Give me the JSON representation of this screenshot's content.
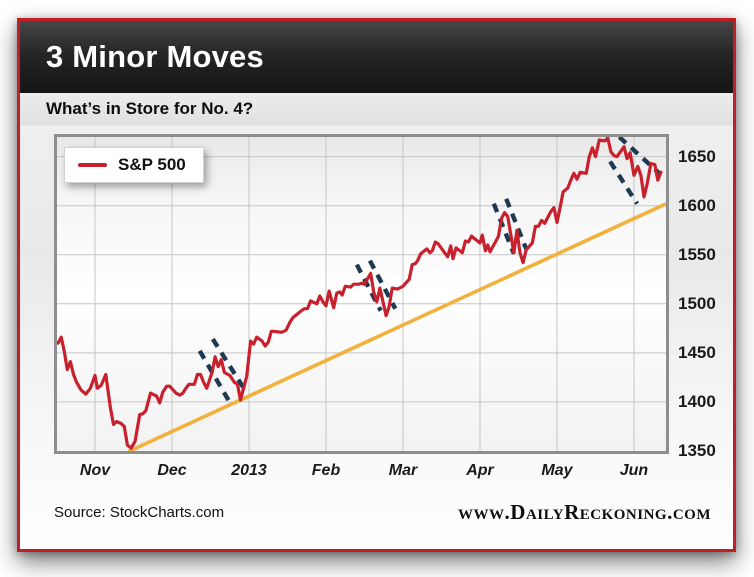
{
  "header": {
    "title": "3 Minor Moves"
  },
  "subtitle": "What’s in Store for No. 4?",
  "legend": {
    "label": "S&P 500"
  },
  "footer": {
    "source": "Source: StockCharts.com",
    "site": "www.DailyReckoning.com"
  },
  "colors": {
    "card_border": "#bf2026",
    "price_line": "#c9202e",
    "trend_line": "#f2b03c",
    "channel_dash": "#1e3a52",
    "gridline": "#c6c6c6",
    "plot_border": "#8e8e8e"
  },
  "chart_data": {
    "type": "line",
    "title": "3 Minor Moves",
    "subtitle": "What's in Store for No. 4?",
    "x_tick_labels": [
      "Nov",
      "Dec",
      "2013",
      "Feb",
      "Mar",
      "Apr",
      "May",
      "Jun"
    ],
    "y_ticks": [
      1350,
      1400,
      1450,
      1500,
      1550,
      1600,
      1650
    ],
    "xlim": [
      -0.494,
      7.416
    ],
    "ylim": [
      1350,
      1670
    ],
    "grid": true,
    "legend_position": "top-left",
    "series": [
      {
        "name": "S&P 500",
        "color": "#c9202e",
        "points": [
          [
            -0.48,
            1460
          ],
          [
            -0.44,
            1466
          ],
          [
            -0.4,
            1452
          ],
          [
            -0.36,
            1433
          ],
          [
            -0.32,
            1441
          ],
          [
            -0.28,
            1428
          ],
          [
            -0.24,
            1420
          ],
          [
            -0.18,
            1412
          ],
          [
            -0.12,
            1408
          ],
          [
            -0.06,
            1414
          ],
          [
            0.0,
            1427
          ],
          [
            0.03,
            1414
          ],
          [
            0.08,
            1417
          ],
          [
            0.14,
            1428
          ],
          [
            0.2,
            1394
          ],
          [
            0.24,
            1377
          ],
          [
            0.28,
            1380
          ],
          [
            0.34,
            1378
          ],
          [
            0.38,
            1375
          ],
          [
            0.42,
            1356
          ],
          [
            0.47,
            1353
          ],
          [
            0.52,
            1360
          ],
          [
            0.58,
            1387
          ],
          [
            0.62,
            1388
          ],
          [
            0.66,
            1391
          ],
          [
            0.72,
            1409
          ],
          [
            0.8,
            1406
          ],
          [
            0.84,
            1399
          ],
          [
            0.88,
            1410
          ],
          [
            0.93,
            1416
          ],
          [
            0.97,
            1416
          ],
          [
            1.05,
            1409
          ],
          [
            1.1,
            1407
          ],
          [
            1.14,
            1409
          ],
          [
            1.18,
            1414
          ],
          [
            1.22,
            1418
          ],
          [
            1.29,
            1418
          ],
          [
            1.33,
            1428
          ],
          [
            1.37,
            1428
          ],
          [
            1.41,
            1420
          ],
          [
            1.45,
            1414
          ],
          [
            1.52,
            1430
          ],
          [
            1.56,
            1446
          ],
          [
            1.6,
            1436
          ],
          [
            1.64,
            1443
          ],
          [
            1.68,
            1430
          ],
          [
            1.75,
            1427
          ],
          [
            1.81,
            1420
          ],
          [
            1.85,
            1418
          ],
          [
            1.89,
            1402
          ],
          [
            1.97,
            1426
          ],
          [
            2.02,
            1462
          ],
          [
            2.06,
            1459
          ],
          [
            2.1,
            1466
          ],
          [
            2.17,
            1462
          ],
          [
            2.21,
            1457
          ],
          [
            2.25,
            1461
          ],
          [
            2.29,
            1472
          ],
          [
            2.32,
            1472
          ],
          [
            2.42,
            1471
          ],
          [
            2.48,
            1473
          ],
          [
            2.53,
            1481
          ],
          [
            2.57,
            1486
          ],
          [
            2.68,
            1493
          ],
          [
            2.72,
            1495
          ],
          [
            2.76,
            1495
          ],
          [
            2.8,
            1503
          ],
          [
            2.88,
            1500
          ],
          [
            2.92,
            1508
          ],
          [
            2.96,
            1502
          ],
          [
            3.0,
            1498
          ],
          [
            3.04,
            1513
          ],
          [
            3.1,
            1496
          ],
          [
            3.14,
            1511
          ],
          [
            3.18,
            1512
          ],
          [
            3.21,
            1509
          ],
          [
            3.25,
            1518
          ],
          [
            3.32,
            1517
          ],
          [
            3.36,
            1520
          ],
          [
            3.43,
            1520
          ],
          [
            3.46,
            1521
          ],
          [
            3.5,
            1520
          ],
          [
            3.58,
            1531
          ],
          [
            3.62,
            1512
          ],
          [
            3.66,
            1502
          ],
          [
            3.7,
            1516
          ],
          [
            3.78,
            1488
          ],
          [
            3.82,
            1497
          ],
          [
            3.86,
            1516
          ],
          [
            3.93,
            1515
          ],
          [
            4.0,
            1518
          ],
          [
            4.08,
            1525
          ],
          [
            4.12,
            1540
          ],
          [
            4.16,
            1541
          ],
          [
            4.19,
            1544
          ],
          [
            4.23,
            1551
          ],
          [
            4.31,
            1556
          ],
          [
            4.35,
            1552
          ],
          [
            4.38,
            1554
          ],
          [
            4.42,
            1563
          ],
          [
            4.46,
            1561
          ],
          [
            4.54,
            1552
          ],
          [
            4.58,
            1548
          ],
          [
            4.62,
            1559
          ],
          [
            4.65,
            1546
          ],
          [
            4.69,
            1557
          ],
          [
            4.77,
            1552
          ],
          [
            4.81,
            1564
          ],
          [
            4.85,
            1563
          ],
          [
            4.89,
            1569
          ],
          [
            5.0,
            1562
          ],
          [
            5.03,
            1570
          ],
          [
            5.07,
            1554
          ],
          [
            5.1,
            1560
          ],
          [
            5.13,
            1553
          ],
          [
            5.2,
            1563
          ],
          [
            5.24,
            1569
          ],
          [
            5.28,
            1587
          ],
          [
            5.32,
            1593
          ],
          [
            5.36,
            1589
          ],
          [
            5.44,
            1552
          ],
          [
            5.48,
            1575
          ],
          [
            5.52,
            1552
          ],
          [
            5.56,
            1542
          ],
          [
            5.6,
            1555
          ],
          [
            5.68,
            1562
          ],
          [
            5.72,
            1579
          ],
          [
            5.76,
            1579
          ],
          [
            5.8,
            1585
          ],
          [
            5.84,
            1582
          ],
          [
            5.92,
            1594
          ],
          [
            5.96,
            1598
          ],
          [
            6.0,
            1583
          ],
          [
            6.04,
            1598
          ],
          [
            6.08,
            1614
          ],
          [
            6.14,
            1618
          ],
          [
            6.18,
            1626
          ],
          [
            6.22,
            1633
          ],
          [
            6.26,
            1627
          ],
          [
            6.3,
            1634
          ],
          [
            6.38,
            1633
          ],
          [
            6.42,
            1650
          ],
          [
            6.46,
            1659
          ],
          [
            6.5,
            1650
          ],
          [
            6.55,
            1667
          ],
          [
            6.62,
            1666
          ],
          [
            6.66,
            1669
          ],
          [
            6.7,
            1655
          ],
          [
            6.74,
            1651
          ],
          [
            6.78,
            1650
          ],
          [
            6.87,
            1660
          ],
          [
            6.91,
            1648
          ],
          [
            6.95,
            1654
          ],
          [
            7.0,
            1631
          ],
          [
            7.05,
            1640
          ],
          [
            7.09,
            1631
          ],
          [
            7.13,
            1609
          ],
          [
            7.17,
            1622
          ],
          [
            7.22,
            1643
          ],
          [
            7.27,
            1642
          ],
          [
            7.31,
            1626
          ],
          [
            7.35,
            1634
          ]
        ]
      }
    ],
    "trendline": {
      "name": "rising-support-trendline",
      "color": "#f2b03c",
      "points": [
        [
          0.45,
          1350
        ],
        [
          7.42,
          1602
        ]
      ]
    },
    "annotations": {
      "name": "minor-move-channels",
      "style": "dashed",
      "color": "#1e3a52",
      "channels": [
        [
          [
            [
              1.36,
              1452
            ],
            [
              1.74,
              1401
            ]
          ],
          [
            [
              1.53,
              1464
            ],
            [
              1.94,
              1413
            ]
          ]
        ],
        [
          [
            [
              3.4,
              1540
            ],
            [
              3.71,
              1493
            ]
          ],
          [
            [
              3.57,
              1544
            ],
            [
              3.9,
              1495
            ]
          ]
        ],
        [
          [
            [
              5.18,
              1602
            ],
            [
              5.44,
              1551
            ]
          ],
          [
            [
              5.34,
              1607
            ],
            [
              5.6,
              1556
            ]
          ]
        ],
        [
          [
            [
              6.69,
              1645
            ],
            [
              7.04,
              1602
            ]
          ],
          [
            [
              6.81,
              1670
            ],
            [
              7.33,
              1633
            ]
          ]
        ]
      ]
    }
  }
}
